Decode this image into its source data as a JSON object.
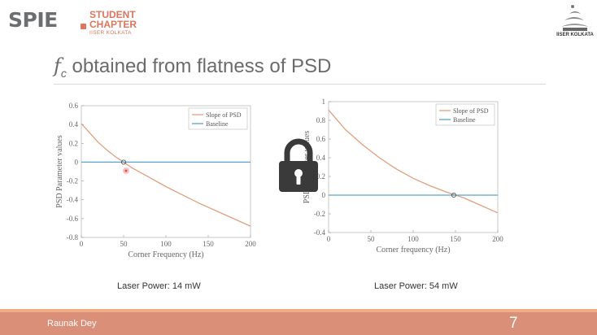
{
  "header": {
    "brand": "SPIE",
    "student": "STUDENT",
    "chapter": "CHAPTER",
    "institute_small": "IISER KOLKATA",
    "logo_text": "IISER KOLKATA"
  },
  "slide": {
    "title_symbol": "f",
    "title_subscript": "c",
    "title_text": " obtained from flatness of PSD"
  },
  "footer": {
    "author": "Raunak Dey",
    "page": "7"
  },
  "colors": {
    "slope": "#e0a07e",
    "baseline": "#5aa3c9",
    "accent": "#e0745f",
    "footer": "#d98f78"
  },
  "icons": [
    "lock-icon",
    "spie-logo-icon",
    "iiser-logo-icon"
  ],
  "chart_data": [
    {
      "type": "line",
      "caption": "Laser Power: 14 mW",
      "xlabel": "Corner Frequency (Hz)",
      "ylabel": "PSD Parameter values",
      "xlim": [
        0,
        200
      ],
      "ylim": [
        -0.8,
        0.6
      ],
      "xticks": [
        0,
        50,
        100,
        150,
        200
      ],
      "yticks": [
        -0.8,
        -0.6,
        -0.4,
        -0.2,
        0,
        0.2,
        0.4,
        0.6
      ],
      "legend": "top-right",
      "grid": false,
      "series": [
        {
          "name": "Slope of PSD",
          "x": [
            0,
            10,
            20,
            30,
            40,
            50,
            60,
            80,
            100,
            120,
            140,
            160,
            180,
            200
          ],
          "y": [
            0.41,
            0.31,
            0.21,
            0.13,
            0.06,
            0.0,
            -0.06,
            -0.16,
            -0.26,
            -0.35,
            -0.44,
            -0.52,
            -0.6,
            -0.68
          ]
        },
        {
          "name": "Baseline",
          "x": [
            0,
            200
          ],
          "y": [
            0,
            0
          ]
        }
      ],
      "marker": {
        "x": 50,
        "y": 0
      }
    },
    {
      "type": "line",
      "caption": "Laser Power: 54 mW",
      "xlabel": "Corner frequency (Hz)",
      "ylabel": "PSD Parameter values",
      "xlim": [
        0,
        200
      ],
      "ylim": [
        -0.4,
        1
      ],
      "xticks": [
        0,
        50,
        100,
        150,
        200
      ],
      "yticks": [
        -0.4,
        -0.2,
        0,
        0.2,
        0.4,
        0.6,
        0.8,
        1
      ],
      "legend": "top-right",
      "grid": false,
      "series": [
        {
          "name": "Slope of PSD",
          "x": [
            0,
            20,
            40,
            60,
            80,
            100,
            120,
            140,
            150,
            160,
            180,
            200
          ],
          "y": [
            0.91,
            0.7,
            0.54,
            0.4,
            0.28,
            0.18,
            0.1,
            0.03,
            0.0,
            -0.03,
            -0.11,
            -0.19
          ]
        },
        {
          "name": "Baseline",
          "x": [
            0,
            200
          ],
          "y": [
            0,
            0
          ]
        }
      ],
      "marker": {
        "x": 148,
        "y": 0
      }
    }
  ]
}
